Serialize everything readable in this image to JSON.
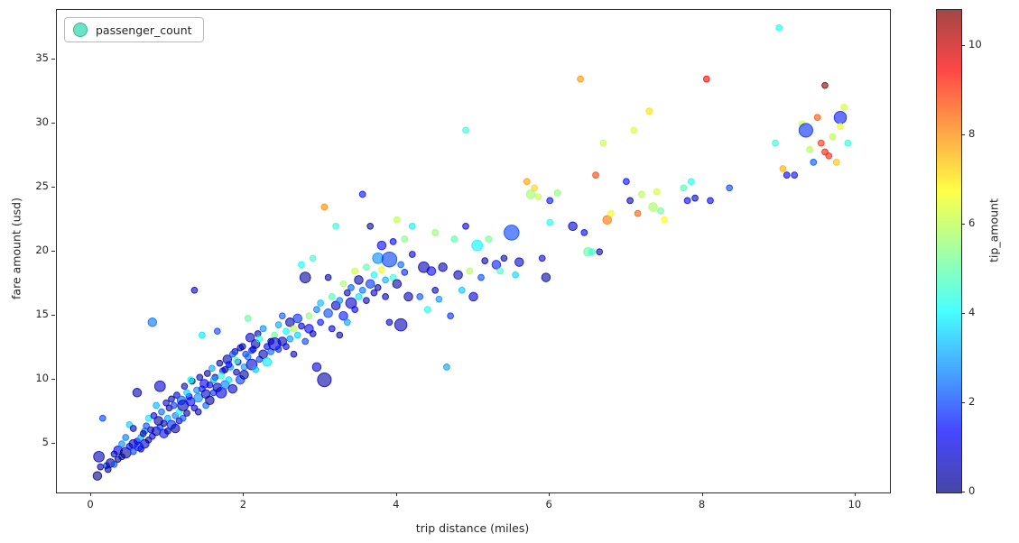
{
  "figure": {
    "legend": {
      "label": "passenger_count",
      "marker_color": "#69e3c3"
    },
    "colorbar": {
      "label": "tip_amount",
      "ticks": [
        0,
        2,
        4,
        6,
        8,
        10
      ],
      "vmin": 0,
      "vmax": 10.8
    }
  },
  "chart_data": {
    "type": "scatter",
    "title": "",
    "xlabel": "trip distance (miles)",
    "ylabel": "fare amount (usd)",
    "xlim": [
      -0.45,
      10.45
    ],
    "ylim": [
      1.2,
      38.9
    ],
    "xticks": [
      0,
      2,
      4,
      6,
      8,
      10
    ],
    "yticks": [
      5,
      10,
      15,
      20,
      25,
      30,
      35
    ],
    "legend_label": "passenger_count",
    "color_label": "tip_amount",
    "size_label": "passenger_count",
    "colormap": "jet",
    "alpha": 0.6,
    "color_max": 10.8,
    "point_format": [
      "trip_distance_miles",
      "fare_amount_usd",
      "tip_amount",
      "passenger_count"
    ],
    "points": [
      [
        0.08,
        2.5,
        0,
        2
      ],
      [
        0.1,
        4.0,
        0.5,
        3
      ],
      [
        0.12,
        3.2,
        0.2,
        1
      ],
      [
        0.15,
        7.0,
        2.0,
        1
      ],
      [
        0.2,
        3.3,
        1.8,
        1
      ],
      [
        0.22,
        3.0,
        0,
        1
      ],
      [
        0.25,
        3.5,
        0.3,
        2
      ],
      [
        0.3,
        4.2,
        0.6,
        1
      ],
      [
        0.3,
        3.4,
        2.2,
        1
      ],
      [
        0.35,
        4.5,
        1.0,
        2
      ],
      [
        0.4,
        4.0,
        0.4,
        1
      ],
      [
        0.4,
        5.0,
        2.8,
        1
      ],
      [
        0.45,
        4.3,
        0.2,
        3
      ],
      [
        0.5,
        4.8,
        1.5,
        1
      ],
      [
        0.5,
        6.5,
        3.5,
        1
      ],
      [
        0.55,
        5.0,
        0.5,
        2
      ],
      [
        0.55,
        4.4,
        2.0,
        1
      ],
      [
        0.6,
        9.0,
        0.5,
        2
      ],
      [
        0.6,
        5.2,
        1.2,
        1
      ],
      [
        0.65,
        5.5,
        3.0,
        1
      ],
      [
        0.65,
        4.6,
        0.3,
        1
      ],
      [
        0.7,
        5.0,
        0.8,
        2
      ],
      [
        0.7,
        6.0,
        2.5,
        1
      ],
      [
        0.75,
        5.3,
        0.2,
        1
      ],
      [
        0.75,
        7.0,
        3.8,
        1
      ],
      [
        0.8,
        14.5,
        2.5,
        2
      ],
      [
        0.8,
        5.6,
        1.0,
        1
      ],
      [
        0.85,
        6.0,
        0.5,
        2
      ],
      [
        0.85,
        8.0,
        3.2,
        1
      ],
      [
        0.9,
        9.5,
        0.8,
        3
      ],
      [
        0.9,
        6.3,
        2.0,
        1
      ],
      [
        0.95,
        6.6,
        0.4,
        1
      ],
      [
        0.95,
        5.8,
        1.5,
        2
      ],
      [
        1.0,
        7.0,
        3.0,
        1
      ],
      [
        1.0,
        6.0,
        0.2,
        1
      ],
      [
        0.35,
        3.8,
        0.2,
        1
      ],
      [
        0.45,
        5.5,
        2.6,
        1
      ],
      [
        0.55,
        6.2,
        0.4,
        1
      ],
      [
        0.62,
        4.8,
        1.6,
        2
      ],
      [
        0.68,
        5.8,
        0.3,
        1
      ],
      [
        0.72,
        6.4,
        2.1,
        1
      ],
      [
        0.78,
        6.1,
        0.6,
        1
      ],
      [
        0.82,
        7.2,
        1.2,
        1
      ],
      [
        0.88,
        6.8,
        0.2,
        2
      ],
      [
        0.92,
        7.5,
        2.4,
        1
      ],
      [
        0.98,
        8.2,
        0.9,
        1
      ],
      [
        1.02,
        7.8,
        0.3,
        1
      ],
      [
        1.08,
        8.0,
        1.9,
        1
      ],
      [
        1.12,
        8.8,
        0.5,
        1
      ],
      [
        1.18,
        8.4,
        2.3,
        2
      ],
      [
        1.22,
        9.5,
        0.7,
        1
      ],
      [
        1.28,
        8.7,
        1.1,
        1
      ],
      [
        1.32,
        9.9,
        0.4,
        1
      ],
      [
        1.38,
        9.2,
        2.7,
        1
      ],
      [
        1.42,
        10.2,
        0.6,
        1
      ],
      [
        1.48,
        9.7,
        1.3,
        2
      ],
      [
        1.52,
        10.5,
        0.2,
        1
      ],
      [
        1.58,
        10.9,
        3.1,
        1
      ],
      [
        1.62,
        10.2,
        0.8,
        1
      ],
      [
        1.68,
        11.3,
        0.3,
        1
      ],
      [
        1.72,
        10.7,
        1.7,
        1
      ],
      [
        1.78,
        11.6,
        0.5,
        2
      ],
      [
        1.82,
        11.0,
        2.9,
        1
      ],
      [
        1.88,
        12.2,
        0.6,
        1
      ],
      [
        1.92,
        11.4,
        1.4,
        1
      ],
      [
        1.98,
        12.6,
        0.3,
        1
      ],
      [
        2.02,
        12.0,
        2.0,
        1
      ],
      [
        2.08,
        13.3,
        0.7,
        2
      ],
      [
        2.12,
        12.4,
        1.0,
        1
      ],
      [
        2.18,
        13.6,
        0.4,
        1
      ],
      [
        1.05,
        6.5,
        1.8,
        2
      ],
      [
        1.05,
        8.5,
        0.5,
        1
      ],
      [
        1.1,
        7.2,
        2.6,
        1
      ],
      [
        1.1,
        6.2,
        0.3,
        2
      ],
      [
        1.15,
        7.5,
        4.0,
        1
      ],
      [
        1.15,
        6.8,
        1.0,
        1
      ],
      [
        1.2,
        8.0,
        0.6,
        3
      ],
      [
        1.2,
        7.0,
        2.2,
        1
      ],
      [
        1.25,
        9.0,
        3.5,
        1
      ],
      [
        1.25,
        7.4,
        0.2,
        1
      ],
      [
        1.3,
        8.3,
        1.4,
        2
      ],
      [
        1.3,
        10.0,
        4.2,
        1
      ],
      [
        1.35,
        17.0,
        0.5,
        1
      ],
      [
        1.35,
        7.8,
        0.8,
        1
      ],
      [
        1.4,
        8.6,
        2.8,
        2
      ],
      [
        1.4,
        7.5,
        0.4,
        1
      ],
      [
        1.45,
        9.3,
        1.6,
        1
      ],
      [
        1.45,
        13.5,
        3.8,
        1
      ],
      [
        1.5,
        8.9,
        0.6,
        2
      ],
      [
        1.5,
        8.0,
        2.4,
        1
      ],
      [
        1.55,
        9.6,
        1.2,
        1
      ],
      [
        1.55,
        8.4,
        0.2,
        2
      ],
      [
        1.6,
        10.0,
        3.2,
        1
      ],
      [
        1.6,
        9.0,
        1.8,
        1
      ],
      [
        1.65,
        9.4,
        0.5,
        2
      ],
      [
        1.65,
        13.8,
        2.0,
        1
      ],
      [
        1.7,
        10.3,
        4.5,
        1
      ],
      [
        1.7,
        9.0,
        1.0,
        3
      ],
      [
        1.75,
        10.8,
        0.3,
        1
      ],
      [
        1.75,
        9.6,
        2.6,
        2
      ],
      [
        1.8,
        11.2,
        1.5,
        1
      ],
      [
        1.8,
        10.0,
        3.6,
        1
      ],
      [
        1.85,
        9.3,
        0.7,
        2
      ],
      [
        1.85,
        12.0,
        2.2,
        1
      ],
      [
        1.9,
        10.6,
        0.4,
        1
      ],
      [
        1.9,
        11.5,
        4.8,
        1
      ],
      [
        1.95,
        10.0,
        1.9,
        2
      ],
      [
        1.95,
        12.5,
        0.6,
        1
      ],
      [
        2.0,
        11.0,
        3.0,
        1
      ],
      [
        2.0,
        10.4,
        0.3,
        2
      ],
      [
        2.05,
        11.8,
        2.5,
        1
      ],
      [
        2.05,
        14.8,
        5.0,
        1
      ],
      [
        2.1,
        11.2,
        0.8,
        3
      ],
      [
        2.1,
        12.3,
        1.6,
        1
      ],
      [
        2.15,
        10.8,
        3.4,
        1
      ],
      [
        2.15,
        12.8,
        0.4,
        2
      ],
      [
        2.2,
        11.6,
        2.0,
        1
      ],
      [
        2.2,
        13.2,
        4.4,
        1
      ],
      [
        2.25,
        12.0,
        0.6,
        2
      ],
      [
        2.25,
        14.0,
        2.8,
        1
      ],
      [
        2.3,
        12.6,
        1.2,
        1
      ],
      [
        2.3,
        11.4,
        3.8,
        2
      ],
      [
        2.35,
        13.0,
        0.3,
        1
      ],
      [
        2.35,
        12.2,
        2.4,
        1
      ],
      [
        2.4,
        13.5,
        5.2,
        1
      ],
      [
        2.4,
        12.8,
        0.9,
        4
      ],
      [
        2.45,
        12.4,
        1.7,
        1
      ],
      [
        2.45,
        14.3,
        3.1,
        1
      ],
      [
        2.5,
        13.0,
        0.5,
        2
      ],
      [
        2.5,
        15.0,
        2.2,
        1
      ],
      [
        2.55,
        13.8,
        4.0,
        1
      ],
      [
        2.55,
        12.6,
        1.1,
        1
      ],
      [
        2.6,
        14.5,
        0.4,
        2
      ],
      [
        2.6,
        13.2,
        2.9,
        1
      ],
      [
        2.65,
        14.0,
        6.0,
        1
      ],
      [
        2.65,
        12.0,
        0.7,
        1
      ],
      [
        2.7,
        14.8,
        1.8,
        2
      ],
      [
        2.7,
        13.5,
        3.5,
        1
      ],
      [
        2.75,
        19.0,
        4.2,
        1
      ],
      [
        2.75,
        14.2,
        0.6,
        1
      ],
      [
        2.8,
        18.0,
        0.3,
        3
      ],
      [
        2.8,
        13.0,
        2.0,
        1
      ],
      [
        2.85,
        15.0,
        5.5,
        1
      ],
      [
        2.85,
        14.0,
        1.3,
        2
      ],
      [
        2.9,
        19.5,
        4.6,
        1
      ],
      [
        2.9,
        13.6,
        0.5,
        1
      ],
      [
        2.95,
        15.5,
        2.6,
        1
      ],
      [
        2.95,
        11.0,
        0.8,
        2
      ],
      [
        3.0,
        14.5,
        1.5,
        1
      ],
      [
        3.0,
        16.0,
        3.3,
        1
      ],
      [
        3.05,
        23.5,
        8.0,
        1
      ],
      [
        3.05,
        10.0,
        0.4,
        5
      ],
      [
        3.1,
        15.2,
        2.1,
        2
      ],
      [
        3.1,
        18.0,
        0.2,
        1
      ],
      [
        3.15,
        16.5,
        4.8,
        1
      ],
      [
        3.15,
        14.0,
        1.0,
        1
      ],
      [
        3.2,
        15.8,
        0.6,
        2
      ],
      [
        3.2,
        22.0,
        4.4,
        1
      ],
      [
        3.25,
        16.2,
        2.7,
        1
      ],
      [
        3.25,
        13.5,
        0.3,
        1
      ],
      [
        3.3,
        17.5,
        5.8,
        1
      ],
      [
        3.3,
        15.0,
        1.6,
        2
      ],
      [
        3.35,
        16.8,
        0.5,
        1
      ],
      [
        3.35,
        14.5,
        3.0,
        1
      ],
      [
        3.4,
        17.2,
        2.3,
        1
      ],
      [
        3.4,
        16.0,
        0.8,
        3
      ],
      [
        3.45,
        18.5,
        6.2,
        1
      ],
      [
        3.45,
        15.5,
        1.2,
        1
      ],
      [
        3.5,
        17.8,
        0.4,
        2
      ],
      [
        3.5,
        16.5,
        3.7,
        1
      ],
      [
        3.55,
        24.5,
        1.5,
        1
      ],
      [
        3.55,
        17.0,
        2.5,
        1
      ],
      [
        3.6,
        18.8,
        5.0,
        1
      ],
      [
        3.6,
        16.2,
        0.6,
        1
      ],
      [
        3.65,
        17.5,
        1.9,
        2
      ],
      [
        3.65,
        22.0,
        0.3,
        1
      ],
      [
        3.7,
        18.2,
        4.1,
        1
      ],
      [
        3.7,
        16.8,
        0.9,
        1
      ],
      [
        3.75,
        19.5,
        2.8,
        3
      ],
      [
        3.75,
        17.2,
        0.4,
        1
      ],
      [
        3.8,
        18.6,
        6.5,
        1
      ],
      [
        3.8,
        20.5,
        1.4,
        2
      ],
      [
        3.85,
        17.8,
        3.2,
        1
      ],
      [
        3.85,
        16.5,
        0.5,
        1
      ],
      [
        3.9,
        19.4,
        2.0,
        6
      ],
      [
        3.9,
        14.5,
        0.7,
        1
      ],
      [
        3.95,
        18.0,
        4.6,
        1
      ],
      [
        3.95,
        20.8,
        1.1,
        1
      ],
      [
        4.0,
        22.5,
        6.0,
        1
      ],
      [
        4.0,
        17.5,
        0.3,
        2
      ],
      [
        4.05,
        19.0,
        2.4,
        1
      ],
      [
        4.05,
        14.3,
        0.6,
        4
      ],
      [
        4.1,
        21.0,
        5.4,
        1
      ],
      [
        4.1,
        18.4,
        1.7,
        1
      ],
      [
        4.15,
        16.5,
        0.4,
        2
      ],
      [
        4.2,
        22.0,
        3.9,
        1
      ],
      [
        4.2,
        19.8,
        0.8,
        1
      ],
      [
        4.3,
        16.5,
        2.2,
        1
      ],
      [
        4.35,
        18.8,
        0.5,
        3
      ],
      [
        4.4,
        15.5,
        4.3,
        1
      ],
      [
        4.45,
        18.5,
        1.3,
        2
      ],
      [
        4.5,
        21.5,
        5.6,
        1
      ],
      [
        4.5,
        17.0,
        0.6,
        1
      ],
      [
        4.55,
        16.3,
        2.9,
        1
      ],
      [
        4.6,
        18.8,
        0.4,
        2
      ],
      [
        4.65,
        11.0,
        3.0,
        1
      ],
      [
        4.7,
        15.0,
        1.8,
        1
      ],
      [
        4.75,
        21.0,
        4.9,
        1
      ],
      [
        4.8,
        18.2,
        0.5,
        2
      ],
      [
        4.85,
        17.0,
        3.4,
        1
      ],
      [
        4.9,
        29.5,
        4.5,
        1
      ],
      [
        4.9,
        22.0,
        1.0,
        1
      ],
      [
        4.95,
        18.5,
        5.9,
        1
      ],
      [
        5.0,
        16.5,
        0.7,
        2
      ],
      [
        5.05,
        20.5,
        4.0,
        3
      ],
      [
        5.1,
        18.0,
        2.1,
        1
      ],
      [
        5.15,
        19.3,
        0.4,
        1
      ],
      [
        5.2,
        21.0,
        5.2,
        1
      ],
      [
        5.3,
        19.0,
        1.6,
        2
      ],
      [
        5.35,
        18.5,
        4.7,
        1
      ],
      [
        5.4,
        19.5,
        0.5,
        1
      ],
      [
        5.5,
        21.5,
        2.0,
        6
      ],
      [
        5.55,
        18.2,
        3.6,
        1
      ],
      [
        5.6,
        19.2,
        0.8,
        2
      ],
      [
        5.7,
        25.5,
        7.8,
        1
      ],
      [
        5.75,
        24.5,
        5.7,
        2
      ],
      [
        5.8,
        25.0,
        7.2,
        1
      ],
      [
        5.85,
        24.3,
        6.1,
        1
      ],
      [
        5.9,
        19.5,
        1.2,
        1
      ],
      [
        5.95,
        18.0,
        0.3,
        2
      ],
      [
        6.0,
        24.0,
        1.5,
        1
      ],
      [
        6.0,
        22.3,
        4.2,
        1
      ],
      [
        6.1,
        24.6,
        5.5,
        1
      ],
      [
        6.3,
        22.0,
        0.6,
        2
      ],
      [
        6.4,
        33.5,
        7.9,
        1
      ],
      [
        6.45,
        21.5,
        1.0,
        1
      ],
      [
        6.5,
        20.0,
        5.0,
        2
      ],
      [
        6.55,
        20.0,
        4.6,
        1
      ],
      [
        6.6,
        26.0,
        8.8,
        1
      ],
      [
        6.65,
        20.0,
        0.4,
        1
      ],
      [
        6.7,
        28.5,
        6.2,
        1
      ],
      [
        6.75,
        22.5,
        8.2,
        2
      ],
      [
        6.8,
        23.0,
        6.6,
        1
      ],
      [
        7.0,
        25.5,
        1.4,
        1
      ],
      [
        7.05,
        24.0,
        0.5,
        1
      ],
      [
        7.1,
        29.5,
        6.4,
        1
      ],
      [
        7.15,
        23.0,
        8.5,
        1
      ],
      [
        7.2,
        24.5,
        6.0,
        1
      ],
      [
        7.3,
        31.0,
        7.1,
        1
      ],
      [
        7.35,
        23.5,
        5.8,
        2
      ],
      [
        7.4,
        24.7,
        6.3,
        1
      ],
      [
        7.45,
        23.2,
        5.2,
        1
      ],
      [
        7.5,
        22.5,
        6.7,
        1
      ],
      [
        7.75,
        25.0,
        4.8,
        1
      ],
      [
        7.8,
        24.0,
        1.2,
        1
      ],
      [
        7.85,
        25.5,
        4.3,
        1
      ],
      [
        7.9,
        24.2,
        0.6,
        1
      ],
      [
        8.05,
        33.5,
        9.5,
        1
      ],
      [
        8.1,
        24.0,
        1.3,
        1
      ],
      [
        8.35,
        25.0,
        2.0,
        1
      ],
      [
        8.95,
        28.5,
        4.5,
        1
      ],
      [
        9.0,
        37.5,
        4.2,
        1
      ],
      [
        9.05,
        26.5,
        7.6,
        1
      ],
      [
        9.1,
        26.0,
        1.1,
        1
      ],
      [
        9.2,
        26.0,
        1.4,
        1
      ],
      [
        9.3,
        30.0,
        6.3,
        1
      ],
      [
        9.35,
        29.5,
        1.8,
        5
      ],
      [
        9.4,
        28.0,
        5.9,
        1
      ],
      [
        9.45,
        27.0,
        2.2,
        1
      ],
      [
        9.5,
        30.5,
        8.6,
        1
      ],
      [
        9.55,
        28.5,
        9.0,
        1
      ],
      [
        9.6,
        33.0,
        10.8,
        1
      ],
      [
        9.6,
        27.8,
        9.2,
        1
      ],
      [
        9.65,
        27.5,
        9.1,
        1
      ],
      [
        9.7,
        29.0,
        6.0,
        1
      ],
      [
        9.75,
        27.0,
        7.4,
        1
      ],
      [
        9.8,
        30.5,
        1.6,
        4
      ],
      [
        9.8,
        29.8,
        6.5,
        1
      ],
      [
        9.85,
        31.3,
        6.2,
        1
      ],
      [
        9.9,
        28.5,
        4.4,
        1
      ]
    ]
  }
}
